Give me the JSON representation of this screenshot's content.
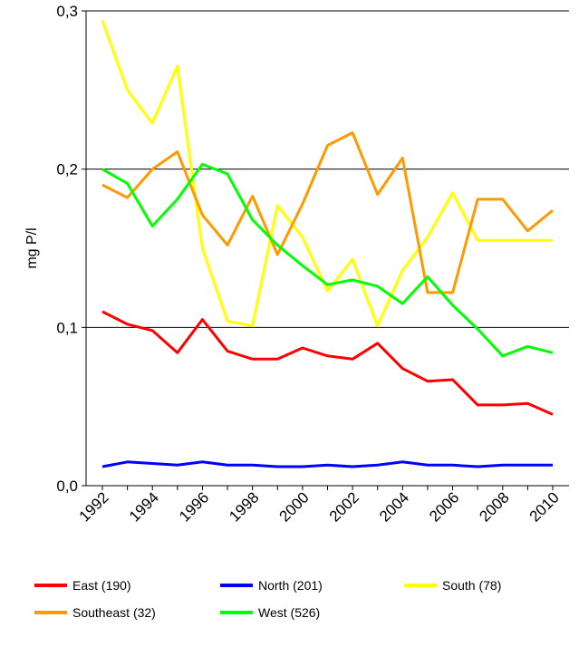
{
  "chart_data": {
    "type": "line",
    "title": "",
    "xlabel": "",
    "ylabel": "mg P/l",
    "ylim": [
      0,
      0.3
    ],
    "y_ticks": [
      "0,0",
      "0,1",
      "0,2",
      "0,3"
    ],
    "grid": "horizontal",
    "legend_position": "bottom",
    "x": [
      1992,
      1993,
      1994,
      1995,
      1996,
      1997,
      1998,
      1999,
      2000,
      2001,
      2002,
      2003,
      2004,
      2005,
      2006,
      2007,
      2008,
      2009,
      2010
    ],
    "x_ticks": [
      "1992",
      "1994",
      "1996",
      "1998",
      "2000",
      "2002",
      "2004",
      "2006",
      "2008",
      "2010"
    ],
    "series": [
      {
        "name": "East (190)",
        "color": "#ff0000",
        "values": [
          0.11,
          0.102,
          0.098,
          0.084,
          0.105,
          0.085,
          0.08,
          0.08,
          0.087,
          0.082,
          0.08,
          0.09,
          0.074,
          0.066,
          0.067,
          0.051,
          0.051,
          0.052,
          0.045
        ]
      },
      {
        "name": "North (201)",
        "color": "#0000ff",
        "values": [
          0.012,
          0.015,
          0.014,
          0.013,
          0.015,
          0.013,
          0.013,
          0.012,
          0.012,
          0.013,
          0.012,
          0.013,
          0.015,
          0.013,
          0.013,
          0.012,
          0.013,
          0.013,
          0.013
        ]
      },
      {
        "name": "South (78)",
        "color": "#ffff00",
        "values": [
          0.294,
          0.25,
          0.229,
          0.265,
          0.15,
          0.104,
          0.101,
          0.177,
          0.157,
          0.123,
          0.143,
          0.101,
          0.136,
          0.157,
          0.185,
          0.155,
          0.155,
          0.155,
          0.155
        ]
      },
      {
        "name": "Southeast (32)",
        "color": "#ff9900",
        "values": [
          0.19,
          0.182,
          0.2,
          0.211,
          0.171,
          0.152,
          0.183,
          0.146,
          0.178,
          0.215,
          0.223,
          0.184,
          0.207,
          0.122,
          0.122,
          0.181,
          0.181,
          0.161,
          0.174
        ]
      },
      {
        "name": "West (526)",
        "color": "#00ff00",
        "values": [
          0.2,
          0.191,
          0.164,
          0.181,
          0.203,
          0.197,
          0.168,
          0.152,
          0.139,
          0.127,
          0.13,
          0.126,
          0.115,
          0.132,
          0.114,
          0.099,
          0.082,
          0.088,
          0.084
        ]
      }
    ]
  }
}
